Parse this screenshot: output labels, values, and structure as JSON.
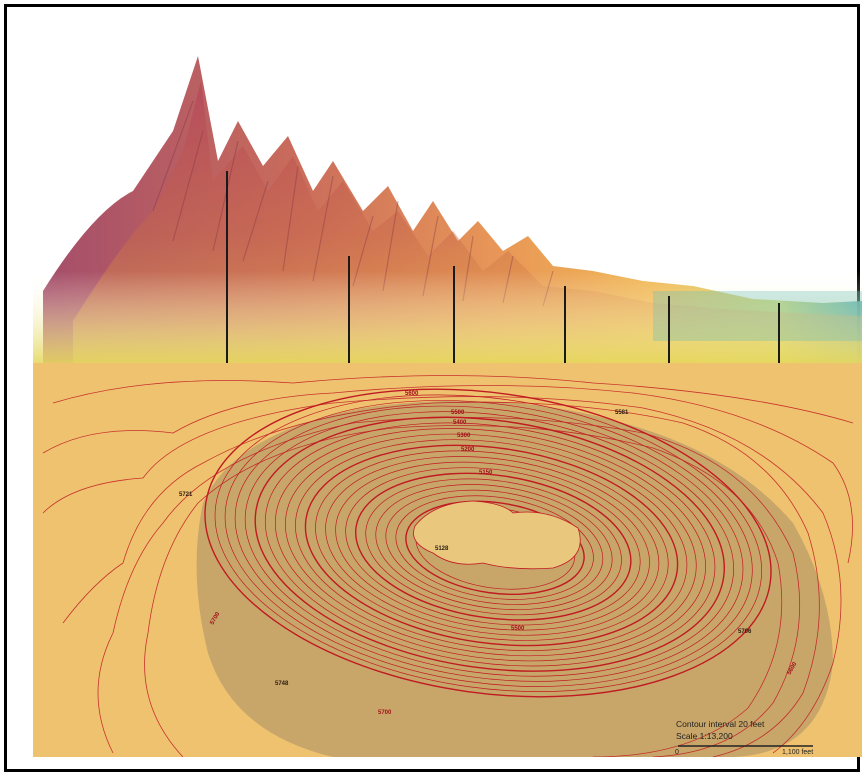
{
  "elevation_labels": {
    "rim_west": "5721",
    "rim_northeast": "5581",
    "rim_east": "5706",
    "rim_southwest": "5748",
    "lake_level": "5128",
    "contour_5600": "5600",
    "contour_5500": "5500",
    "contour_5400": "5400",
    "contour_5300": "5300",
    "contour_5200": "5200",
    "contour_5150": "5150",
    "contour_west": "5700",
    "contour_south": "5700",
    "contour_southeast": "5600",
    "contour_south_inner": "5500"
  },
  "legend": {
    "interval": "Contour interval 20 feet",
    "scale": "Scale 1:13,200",
    "bar_start": "0",
    "bar_end": "1,100 feet"
  },
  "colors": {
    "contour_line": "#c01a22",
    "map_paper": "#efc26f",
    "shadow": "#a79065"
  }
}
